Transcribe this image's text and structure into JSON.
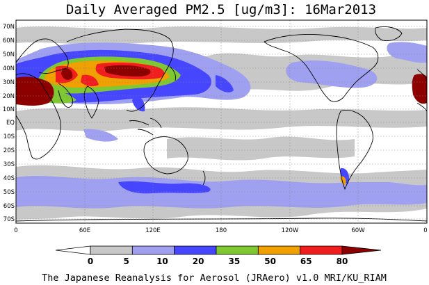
{
  "title": "Daily Averaged PM2.5 [ug/m3]: 16Mar2013",
  "credit": "The Japanese Reanalysis for Aerosol (JRAero) v1.0 MRI/KU_RIAM",
  "lat_labels": [
    "70N",
    "60N",
    "50N",
    "40N",
    "30N",
    "20N",
    "10N",
    "EQ",
    "10S",
    "20S",
    "30S",
    "40S",
    "50S",
    "60S",
    "70S"
  ],
  "lon_labels": [
    "0",
    "60E",
    "120E",
    "180",
    "120W",
    "60W",
    "0"
  ],
  "colorbar": {
    "labels": [
      "0",
      "5",
      "10",
      "20",
      "35",
      "50",
      "65",
      "80"
    ],
    "colors": [
      "#ffffff",
      "#c8c8c8",
      "#a0a0f0",
      "#4646ff",
      "#7fc832",
      "#f0a000",
      "#f01e1e",
      "#8c0000"
    ]
  },
  "colors": {
    "land": "#ffffff",
    "ocean": "#ffffff",
    "coast": "#000000",
    "grid": "#888888"
  }
}
